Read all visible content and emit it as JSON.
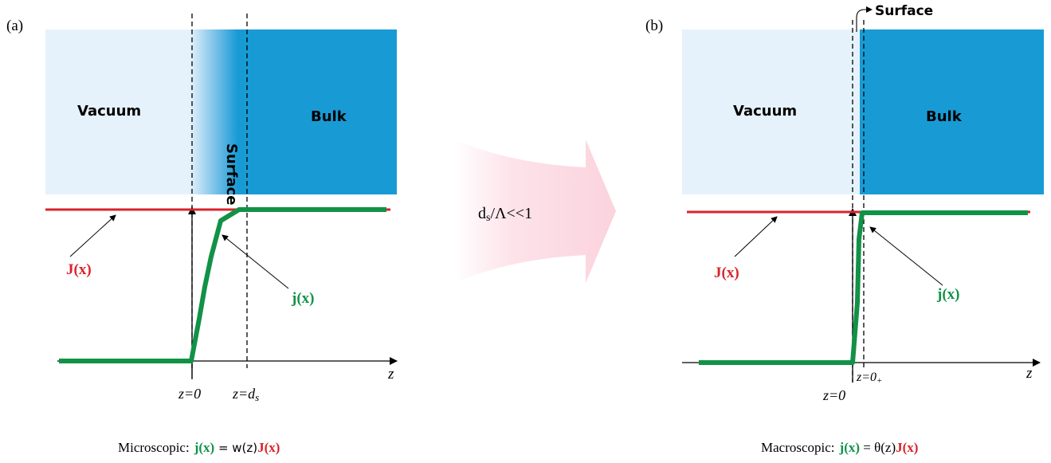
{
  "colors": {
    "vacuum": "#e6f2fb",
    "bulk": "#189bd5",
    "red_curve": "#d9232b",
    "green_curve": "#119247",
    "arrow_fill": "#fde3ea"
  },
  "panel_a": {
    "tag": "(a)",
    "vacuum_label": "Vacuum",
    "surface_label": "Surface",
    "bulk_label": "Bulk",
    "J_label": "J(x)",
    "j_label": "j(x)",
    "axis_label": "z",
    "tick_z0": "z=0",
    "tick_zds": "z=d",
    "tick_zds_sub": "s",
    "caption_prefix": "Microscopic:",
    "caption_eq_lhs": "j(x)",
    "caption_eq_mid": " = w(z)",
    "caption_eq_rhs": "J(x)"
  },
  "transition": {
    "label": "d",
    "label_sub": "s",
    "label_rest": "/Λ<<1"
  },
  "panel_b": {
    "tag": "(b)",
    "vacuum_label": "Vacuum",
    "surface_label": "Surface",
    "bulk_label": "Bulk",
    "J_label": "J(x)",
    "j_label": "j(x)",
    "axis_label": "z",
    "tick_z0": "z=0",
    "tick_z0plus": "z=0",
    "tick_z0plus_sub": "+",
    "caption_prefix": "Macroscopic:",
    "caption_eq_lhs": "j(x)",
    "caption_eq_mid": " = θ(z)",
    "caption_eq_rhs": "J(x)"
  }
}
